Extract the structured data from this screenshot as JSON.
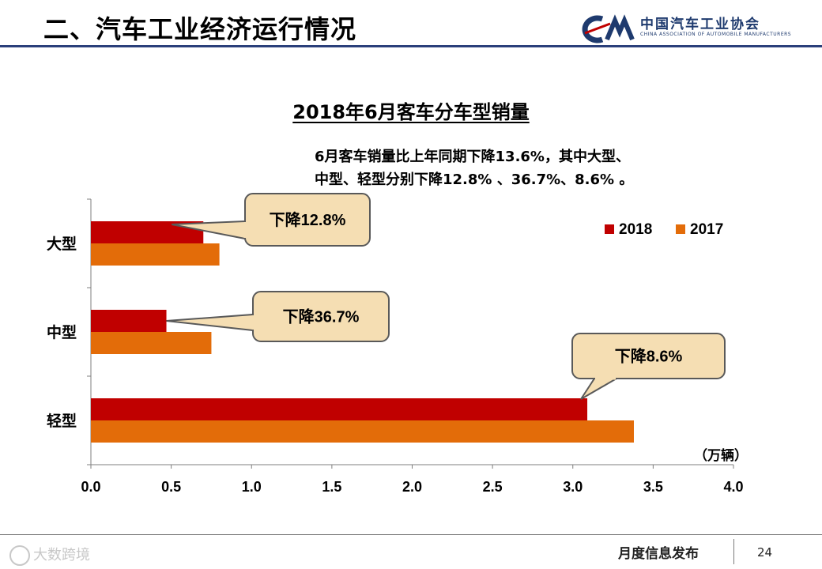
{
  "header": {
    "title": "二、汽车工业经济运行情况",
    "logo_cn": "中国汽车工业协会",
    "logo_en": "CHINA ASSOCIATION OF AUTOMOBILE MANUFACTURERS",
    "logo_mark": "CAM",
    "accent_color": "#2a3f7a"
  },
  "note": {
    "line1": "6月客车销量比上年同期下降13.6%，其中大型、",
    "line2": "中型、轻型分别下降12.8% 、36.7%、8.6% 。"
  },
  "chart_data": {
    "type": "bar",
    "orientation": "horizontal",
    "title": "2018年6月客车分车型销量",
    "unit_label": "（万辆）",
    "categories": [
      "大型",
      "中型",
      "轻型"
    ],
    "series": [
      {
        "name": "2018",
        "color": "#c00000",
        "values": [
          0.7,
          0.47,
          3.09
        ]
      },
      {
        "name": "2017",
        "color": "#e36c09",
        "values": [
          0.8,
          0.75,
          3.38
        ]
      }
    ],
    "xlim": [
      0,
      4.0
    ],
    "xticks": [
      "0.0",
      "0.5",
      "1.0",
      "1.5",
      "2.0",
      "2.5",
      "3.0",
      "3.5",
      "4.0"
    ],
    "legend_position": "top-right",
    "grid": false,
    "callouts": [
      "下降12.8%",
      "下降36.7%",
      "下降8.6%"
    ]
  },
  "footer": {
    "label": "月度信息发布",
    "page": "24",
    "watermark": "大数跨境"
  }
}
